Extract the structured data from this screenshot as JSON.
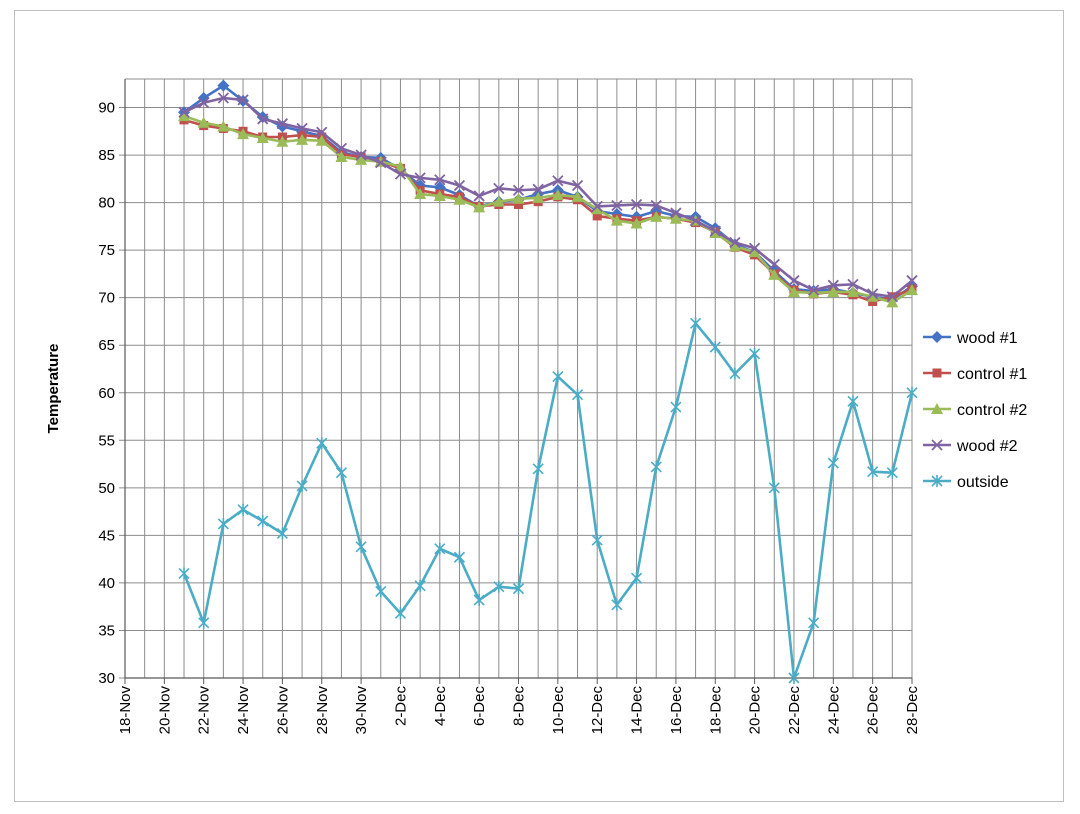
{
  "chart_data": {
    "type": "line",
    "ylabel": "Temperature",
    "xlabel": "",
    "ylim": [
      30,
      93
    ],
    "yticks": [
      30,
      35,
      40,
      45,
      50,
      55,
      60,
      65,
      70,
      75,
      80,
      85,
      90
    ],
    "x_range": [
      "18-Nov",
      "28-Dec"
    ],
    "xtick_labels": [
      "18-Nov",
      "20-Nov",
      "22-Nov",
      "24-Nov",
      "26-Nov",
      "28-Nov",
      "30-Nov",
      "2-Dec",
      "4-Dec",
      "6-Dec",
      "8-Dec",
      "10-Dec",
      "12-Dec",
      "14-Dec",
      "16-Dec",
      "18-Dec",
      "20-Dec",
      "22-Dec",
      "24-Dec",
      "26-Dec",
      "28-Dec"
    ],
    "x": [
      "21-Nov",
      "22-Nov",
      "23-Nov",
      "24-Nov",
      "25-Nov",
      "26-Nov",
      "27-Nov",
      "28-Nov",
      "29-Nov",
      "30-Nov",
      "1-Dec",
      "2-Dec",
      "3-Dec",
      "4-Dec",
      "5-Dec",
      "6-Dec",
      "7-Dec",
      "8-Dec",
      "9-Dec",
      "10-Dec",
      "11-Dec",
      "12-Dec",
      "13-Dec",
      "14-Dec",
      "15-Dec",
      "16-Dec",
      "17-Dec",
      "18-Dec",
      "19-Dec",
      "20-Dec",
      "21-Dec",
      "22-Dec",
      "23-Dec",
      "24-Dec",
      "25-Dec",
      "26-Dec",
      "27-Dec",
      "28-Dec"
    ],
    "grid": true,
    "legend_position": "right",
    "series": [
      {
        "name": "wood #1",
        "color": "#4472C4",
        "marker": "diamond",
        "values": [
          89.5,
          91,
          92.3,
          90.7,
          89,
          88,
          87.5,
          87,
          85.3,
          84.8,
          84.7,
          83.5,
          81.8,
          81.6,
          80.8,
          79.6,
          80.1,
          80.3,
          80.9,
          81.3,
          80.6,
          79.1,
          78.8,
          78.5,
          79.1,
          78.6,
          78.5,
          77.3,
          75.6,
          74.8,
          72.8,
          70.9,
          70.7,
          70.9,
          70.5,
          70.1,
          69.8,
          71.2
        ]
      },
      {
        "name": "control #1",
        "color": "#C0504D",
        "marker": "square",
        "values": [
          88.7,
          88.1,
          87.8,
          87.5,
          86.9,
          86.9,
          87.1,
          86.9,
          85.1,
          84.8,
          84.3,
          83.6,
          81.3,
          80.9,
          80.6,
          79.6,
          79.8,
          79.8,
          80.1,
          80.6,
          80.3,
          78.6,
          78.3,
          78.1,
          78.5,
          78.3,
          77.9,
          76.9,
          75.3,
          74.5,
          72.5,
          70.8,
          70.4,
          70.6,
          70.3,
          69.6,
          70.1,
          70.9
        ]
      },
      {
        "name": "control #2",
        "color": "#9BBB59",
        "marker": "triangle",
        "values": [
          89.1,
          88.4,
          88,
          87.2,
          86.8,
          86.4,
          86.6,
          86.5,
          84.8,
          84.5,
          84.3,
          83.8,
          80.9,
          80.7,
          80.3,
          79.5,
          80.1,
          80.4,
          80.5,
          80.8,
          80.6,
          79.3,
          78.1,
          77.8,
          78.5,
          78.3,
          78.1,
          76.8,
          75.4,
          74.8,
          72.4,
          70.6,
          70.5,
          70.6,
          70.6,
          70.1,
          69.5,
          70.8
        ]
      },
      {
        "name": "wood #2",
        "color": "#8064A2",
        "marker": "x",
        "values": [
          89.5,
          90.5,
          91,
          90.8,
          88.8,
          88.3,
          87.8,
          87.4,
          85.7,
          85,
          84.2,
          83,
          82.6,
          82.4,
          81.8,
          80.7,
          81.5,
          81.3,
          81.4,
          82.3,
          81.8,
          79.6,
          79.7,
          79.8,
          79.7,
          78.9,
          78.1,
          77,
          75.8,
          75.2,
          73.5,
          71.8,
          70.8,
          71.3,
          71.4,
          70.4,
          70.1,
          71.8
        ]
      },
      {
        "name": "outside",
        "color": "#4BACC6",
        "marker": "star",
        "values": [
          41,
          35.8,
          46.2,
          47.7,
          46.5,
          45.2,
          50.2,
          54.7,
          51.6,
          43.8,
          39.1,
          36.8,
          39.7,
          43.6,
          42.7,
          38.2,
          39.6,
          39.4,
          52,
          61.7,
          59.8,
          44.5,
          37.7,
          40.5,
          52.2,
          58.5,
          67.3,
          64.8,
          62,
          64.1,
          50,
          29.5,
          35.8,
          52.6,
          59.1,
          51.7,
          51.6,
          60
        ]
      }
    ]
  }
}
